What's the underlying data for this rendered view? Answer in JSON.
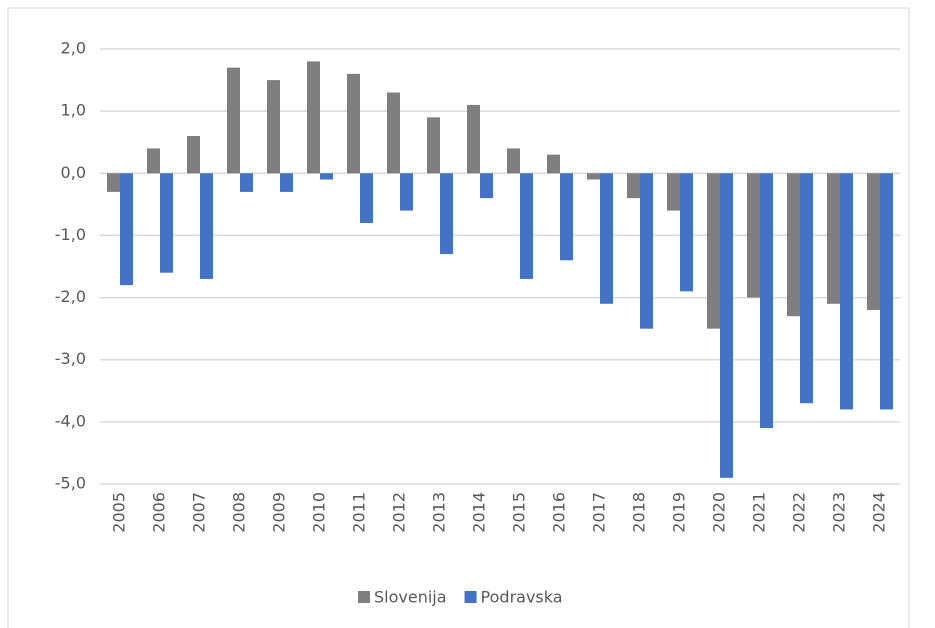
{
  "chart_data": {
    "type": "bar",
    "categories": [
      "2005",
      "2006",
      "2007",
      "2008",
      "2009",
      "2010",
      "2011",
      "2012",
      "2013",
      "2014",
      "2015",
      "2016",
      "2017",
      "2018",
      "2019",
      "2020",
      "2021",
      "2022",
      "2023",
      "2024"
    ],
    "series": [
      {
        "name": "Slovenija",
        "color": "#7f7f7f",
        "values": [
          -0.3,
          0.4,
          0.6,
          1.7,
          1.5,
          1.8,
          1.6,
          1.3,
          0.9,
          1.1,
          0.4,
          0.3,
          -0.1,
          -0.4,
          -0.6,
          -2.5,
          -2.0,
          -2.3,
          -2.1,
          -2.2
        ]
      },
      {
        "name": "Podravska",
        "color": "#4472c4",
        "values": [
          -1.8,
          -1.6,
          -1.7,
          -0.3,
          -0.3,
          -0.1,
          -0.8,
          -0.6,
          -1.3,
          -0.4,
          -1.7,
          -1.4,
          -2.1,
          -2.5,
          -1.9,
          -4.9,
          -4.1,
          -3.7,
          -3.8,
          -3.8
        ]
      }
    ],
    "ylim": [
      -5,
      2
    ],
    "yticks": [
      {
        "value": 2,
        "label": "2,0"
      },
      {
        "value": 1,
        "label": "1,0"
      },
      {
        "value": 0,
        "label": "0,0"
      },
      {
        "value": -1,
        "label": "-1,0"
      },
      {
        "value": -2,
        "label": "-2,0"
      },
      {
        "value": -3,
        "label": "-3,0"
      },
      {
        "value": -4,
        "label": "-4,0"
      },
      {
        "value": -5,
        "label": "-5,0"
      }
    ],
    "grid": true,
    "legend": "bottom"
  }
}
